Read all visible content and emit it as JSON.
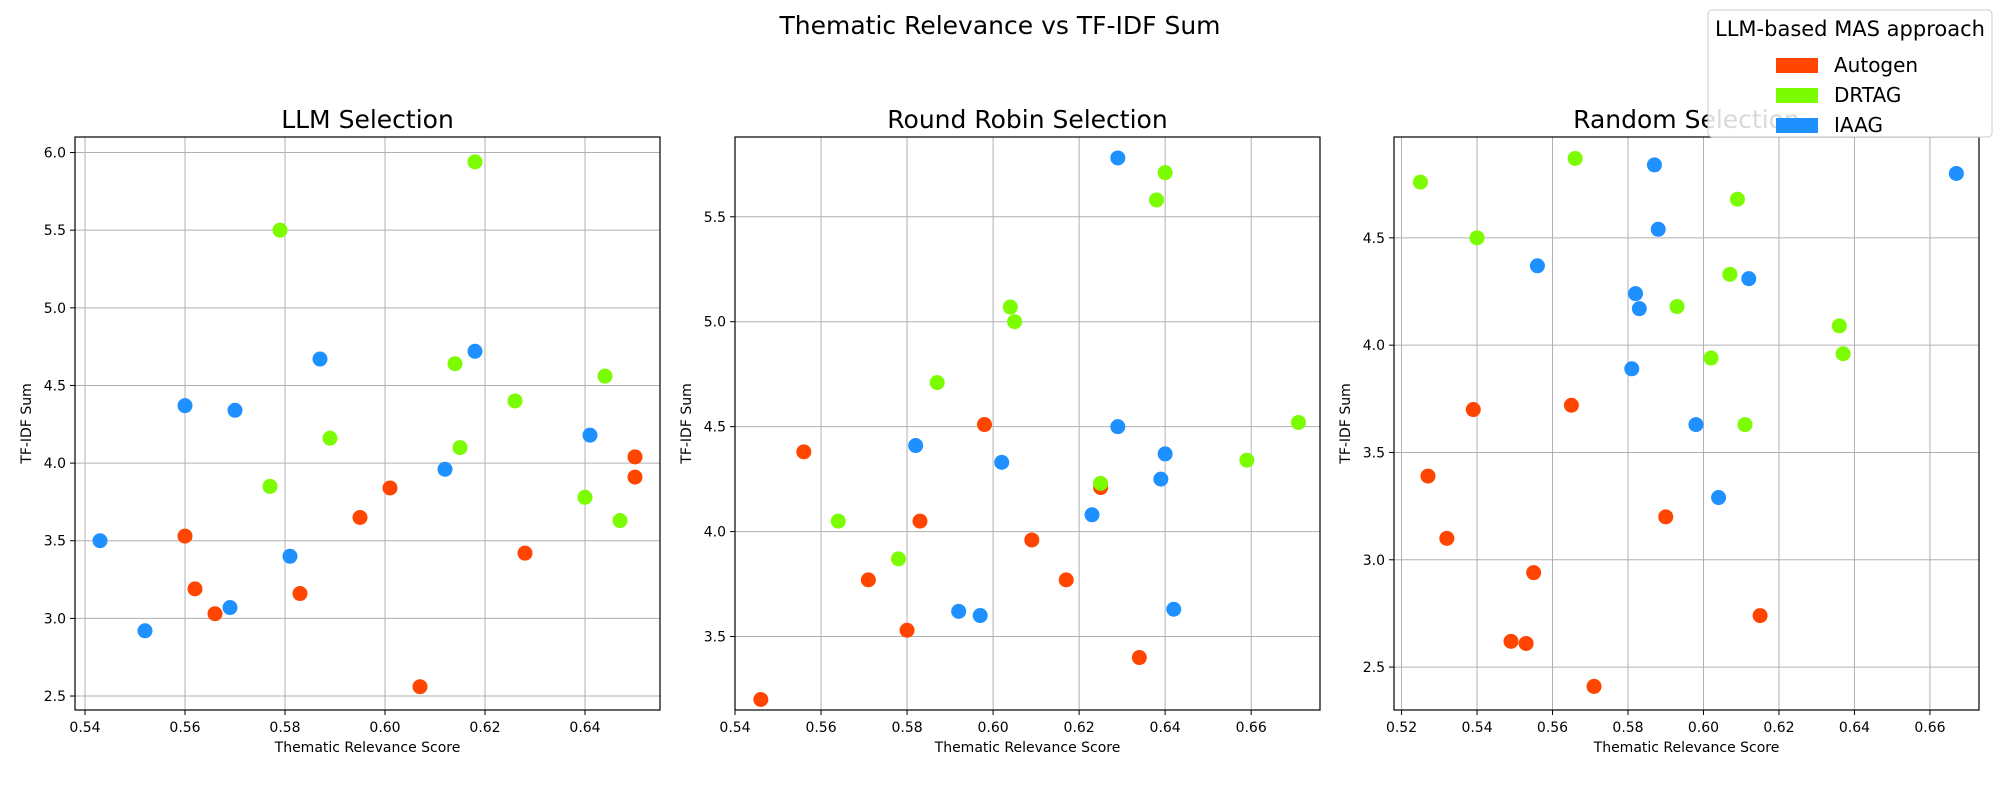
{
  "figure_title": "Thematic Relevance vs TF-IDF Sum",
  "legend": {
    "title": "LLM-based MAS approach",
    "placement": "top-right",
    "entries": [
      {
        "label": "Autogen",
        "color": "#ff4500"
      },
      {
        "label": "DRTAG",
        "color": "#7cfc00"
      },
      {
        "label": "IAAG",
        "color": "#1e90ff"
      }
    ]
  },
  "chart_data": [
    {
      "type": "scatter",
      "title": "LLM Selection",
      "xlabel": "Thematic Relevance Score",
      "ylabel": "TF-IDF Sum",
      "grid": true,
      "xlim": [
        0.538,
        0.655
      ],
      "ylim": [
        2.41,
        6.1
      ],
      "xticks": [
        0.54,
        0.56,
        0.58,
        0.6,
        0.62,
        0.64
      ],
      "yticks": [
        2.5,
        3.0,
        3.5,
        4.0,
        4.5,
        5.0,
        5.5,
        6.0
      ],
      "xtick_labels": [
        "0.54",
        "0.56",
        "0.58",
        "0.60",
        "0.62",
        "0.64"
      ],
      "ytick_labels": [
        "2.5",
        "3.0",
        "3.5",
        "4.0",
        "4.5",
        "5.0",
        "5.5",
        "6.0"
      ],
      "series": [
        {
          "name": "Autogen",
          "points": [
            [
              0.56,
              3.53
            ],
            [
              0.562,
              3.19
            ],
            [
              0.566,
              3.03
            ],
            [
              0.583,
              3.16
            ],
            [
              0.595,
              3.65
            ],
            [
              0.601,
              3.84
            ],
            [
              0.607,
              2.56
            ],
            [
              0.628,
              3.42
            ],
            [
              0.65,
              4.04
            ],
            [
              0.65,
              3.91
            ]
          ]
        },
        {
          "name": "DRTAG",
          "points": [
            [
              0.579,
              5.5
            ],
            [
              0.577,
              3.85
            ],
            [
              0.589,
              4.16
            ],
            [
              0.618,
              5.94
            ],
            [
              0.614,
              4.64
            ],
            [
              0.615,
              4.1
            ],
            [
              0.626,
              4.4
            ],
            [
              0.644,
              4.56
            ],
            [
              0.64,
              3.78
            ],
            [
              0.647,
              3.63
            ]
          ]
        },
        {
          "name": "IAAG",
          "points": [
            [
              0.543,
              3.5
            ],
            [
              0.552,
              2.92
            ],
            [
              0.56,
              4.37
            ],
            [
              0.57,
              4.34
            ],
            [
              0.569,
              3.07
            ],
            [
              0.581,
              3.4
            ],
            [
              0.587,
              4.67
            ],
            [
              0.612,
              3.96
            ],
            [
              0.618,
              4.72
            ],
            [
              0.641,
              4.18
            ]
          ]
        }
      ]
    },
    {
      "type": "scatter",
      "title": "Round Robin Selection",
      "xlabel": "Thematic Relevance Score",
      "ylabel": "TF-IDF Sum",
      "grid": true,
      "xlim": [
        0.54,
        0.676
      ],
      "ylim": [
        3.15,
        5.88
      ],
      "xticks": [
        0.54,
        0.56,
        0.58,
        0.6,
        0.62,
        0.64,
        0.66
      ],
      "yticks": [
        3.5,
        4.0,
        4.5,
        5.0,
        5.5
      ],
      "xtick_labels": [
        "0.54",
        "0.56",
        "0.58",
        "0.60",
        "0.62",
        "0.64",
        "0.66"
      ],
      "ytick_labels": [
        "3.5",
        "4.0",
        "4.5",
        "5.0",
        "5.5"
      ],
      "series": [
        {
          "name": "Autogen",
          "points": [
            [
              0.546,
              3.2
            ],
            [
              0.556,
              4.38
            ],
            [
              0.571,
              3.77
            ],
            [
              0.58,
              3.53
            ],
            [
              0.583,
              4.05
            ],
            [
              0.598,
              4.51
            ],
            [
              0.609,
              3.96
            ],
            [
              0.617,
              3.77
            ],
            [
              0.625,
              4.21
            ],
            [
              0.634,
              3.4
            ]
          ]
        },
        {
          "name": "DRTAG",
          "points": [
            [
              0.564,
              4.05
            ],
            [
              0.578,
              3.87
            ],
            [
              0.587,
              4.71
            ],
            [
              0.604,
              5.07
            ],
            [
              0.605,
              5.0
            ],
            [
              0.625,
              4.23
            ],
            [
              0.638,
              5.58
            ],
            [
              0.64,
              5.71
            ],
            [
              0.659,
              4.34
            ],
            [
              0.671,
              4.52
            ]
          ]
        },
        {
          "name": "IAAG",
          "points": [
            [
              0.582,
              4.41
            ],
            [
              0.592,
              3.62
            ],
            [
              0.597,
              3.6
            ],
            [
              0.602,
              4.33
            ],
            [
              0.623,
              4.08
            ],
            [
              0.629,
              5.78
            ],
            [
              0.629,
              4.5
            ],
            [
              0.639,
              4.25
            ],
            [
              0.64,
              4.37
            ],
            [
              0.642,
              3.63
            ]
          ]
        }
      ]
    },
    {
      "type": "scatter",
      "title": "Random Selection",
      "xlabel": "Thematic Relevance Score",
      "ylabel": "TF-IDF Sum",
      "grid": true,
      "xlim": [
        0.518,
        0.673
      ],
      "ylim": [
        2.3,
        4.97
      ],
      "xticks": [
        0.52,
        0.54,
        0.56,
        0.58,
        0.6,
        0.62,
        0.64,
        0.66
      ],
      "yticks": [
        2.5,
        3.0,
        3.5,
        4.0,
        4.5
      ],
      "xtick_labels": [
        "0.52",
        "0.54",
        "0.56",
        "0.58",
        "0.60",
        "0.62",
        "0.64",
        "0.66"
      ],
      "ytick_labels": [
        "2.5",
        "3.0",
        "3.5",
        "4.0",
        "4.5"
      ],
      "series": [
        {
          "name": "Autogen",
          "points": [
            [
              0.527,
              3.39
            ],
            [
              0.532,
              3.1
            ],
            [
              0.539,
              3.7
            ],
            [
              0.549,
              2.62
            ],
            [
              0.553,
              2.61
            ],
            [
              0.555,
              2.94
            ],
            [
              0.565,
              3.72
            ],
            [
              0.571,
              2.41
            ],
            [
              0.59,
              3.2
            ],
            [
              0.615,
              2.74
            ]
          ]
        },
        {
          "name": "DRTAG",
          "points": [
            [
              0.525,
              4.76
            ],
            [
              0.54,
              4.5
            ],
            [
              0.566,
              4.87
            ],
            [
              0.593,
              4.18
            ],
            [
              0.602,
              3.94
            ],
            [
              0.607,
              4.33
            ],
            [
              0.609,
              4.68
            ],
            [
              0.611,
              3.63
            ],
            [
              0.636,
              4.09
            ],
            [
              0.637,
              3.96
            ]
          ]
        },
        {
          "name": "IAAG",
          "points": [
            [
              0.556,
              4.37
            ],
            [
              0.581,
              3.89
            ],
            [
              0.582,
              4.24
            ],
            [
              0.583,
              4.17
            ],
            [
              0.587,
              4.84
            ],
            [
              0.588,
              4.54
            ],
            [
              0.598,
              3.63
            ],
            [
              0.604,
              3.29
            ],
            [
              0.612,
              4.31
            ],
            [
              0.667,
              4.8
            ]
          ]
        }
      ]
    }
  ]
}
